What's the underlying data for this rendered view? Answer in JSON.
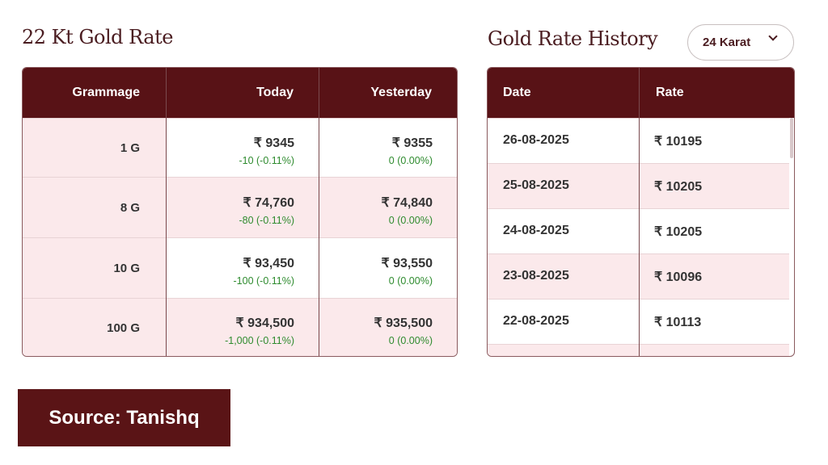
{
  "left": {
    "title": "22 Kt Gold Rate",
    "headers": {
      "grammage": "Grammage",
      "today": "Today",
      "yesterday": "Yesterday"
    },
    "rows": [
      {
        "grammage": "1 G",
        "today": "₹ 9345",
        "today_change": "-10 (-0.11%)",
        "yesterday": "₹ 9355",
        "yesterday_change": "0 (0.00%)"
      },
      {
        "grammage": "8 G",
        "today": "₹ 74,760",
        "today_change": "-80 (-0.11%)",
        "yesterday": "₹ 74,840",
        "yesterday_change": "0 (0.00%)"
      },
      {
        "grammage": "10 G",
        "today": "₹ 93,450",
        "today_change": "-100 (-0.11%)",
        "yesterday": "₹ 93,550",
        "yesterday_change": "0 (0.00%)"
      },
      {
        "grammage": "100 G",
        "today": "₹ 934,500",
        "today_change": "-1,000 (-0.11%)",
        "yesterday": "₹ 935,500",
        "yesterday_change": "0 (0.00%)"
      }
    ]
  },
  "right": {
    "title": "Gold Rate History",
    "karat_select": "24 Karat",
    "headers": {
      "date": "Date",
      "rate": "Rate"
    },
    "rows": [
      {
        "date": "26-08-2025",
        "rate": "₹ 10195"
      },
      {
        "date": "25-08-2025",
        "rate": "₹ 10205"
      },
      {
        "date": "24-08-2025",
        "rate": "₹ 10205"
      },
      {
        "date": "23-08-2025",
        "rate": "₹ 10096"
      },
      {
        "date": "22-08-2025",
        "rate": "₹ 10113"
      }
    ]
  },
  "source": "Source: Tanishq",
  "colors": {
    "header": "#581216",
    "pink": "#fbe9eb",
    "positive": "#2e8b2e"
  }
}
